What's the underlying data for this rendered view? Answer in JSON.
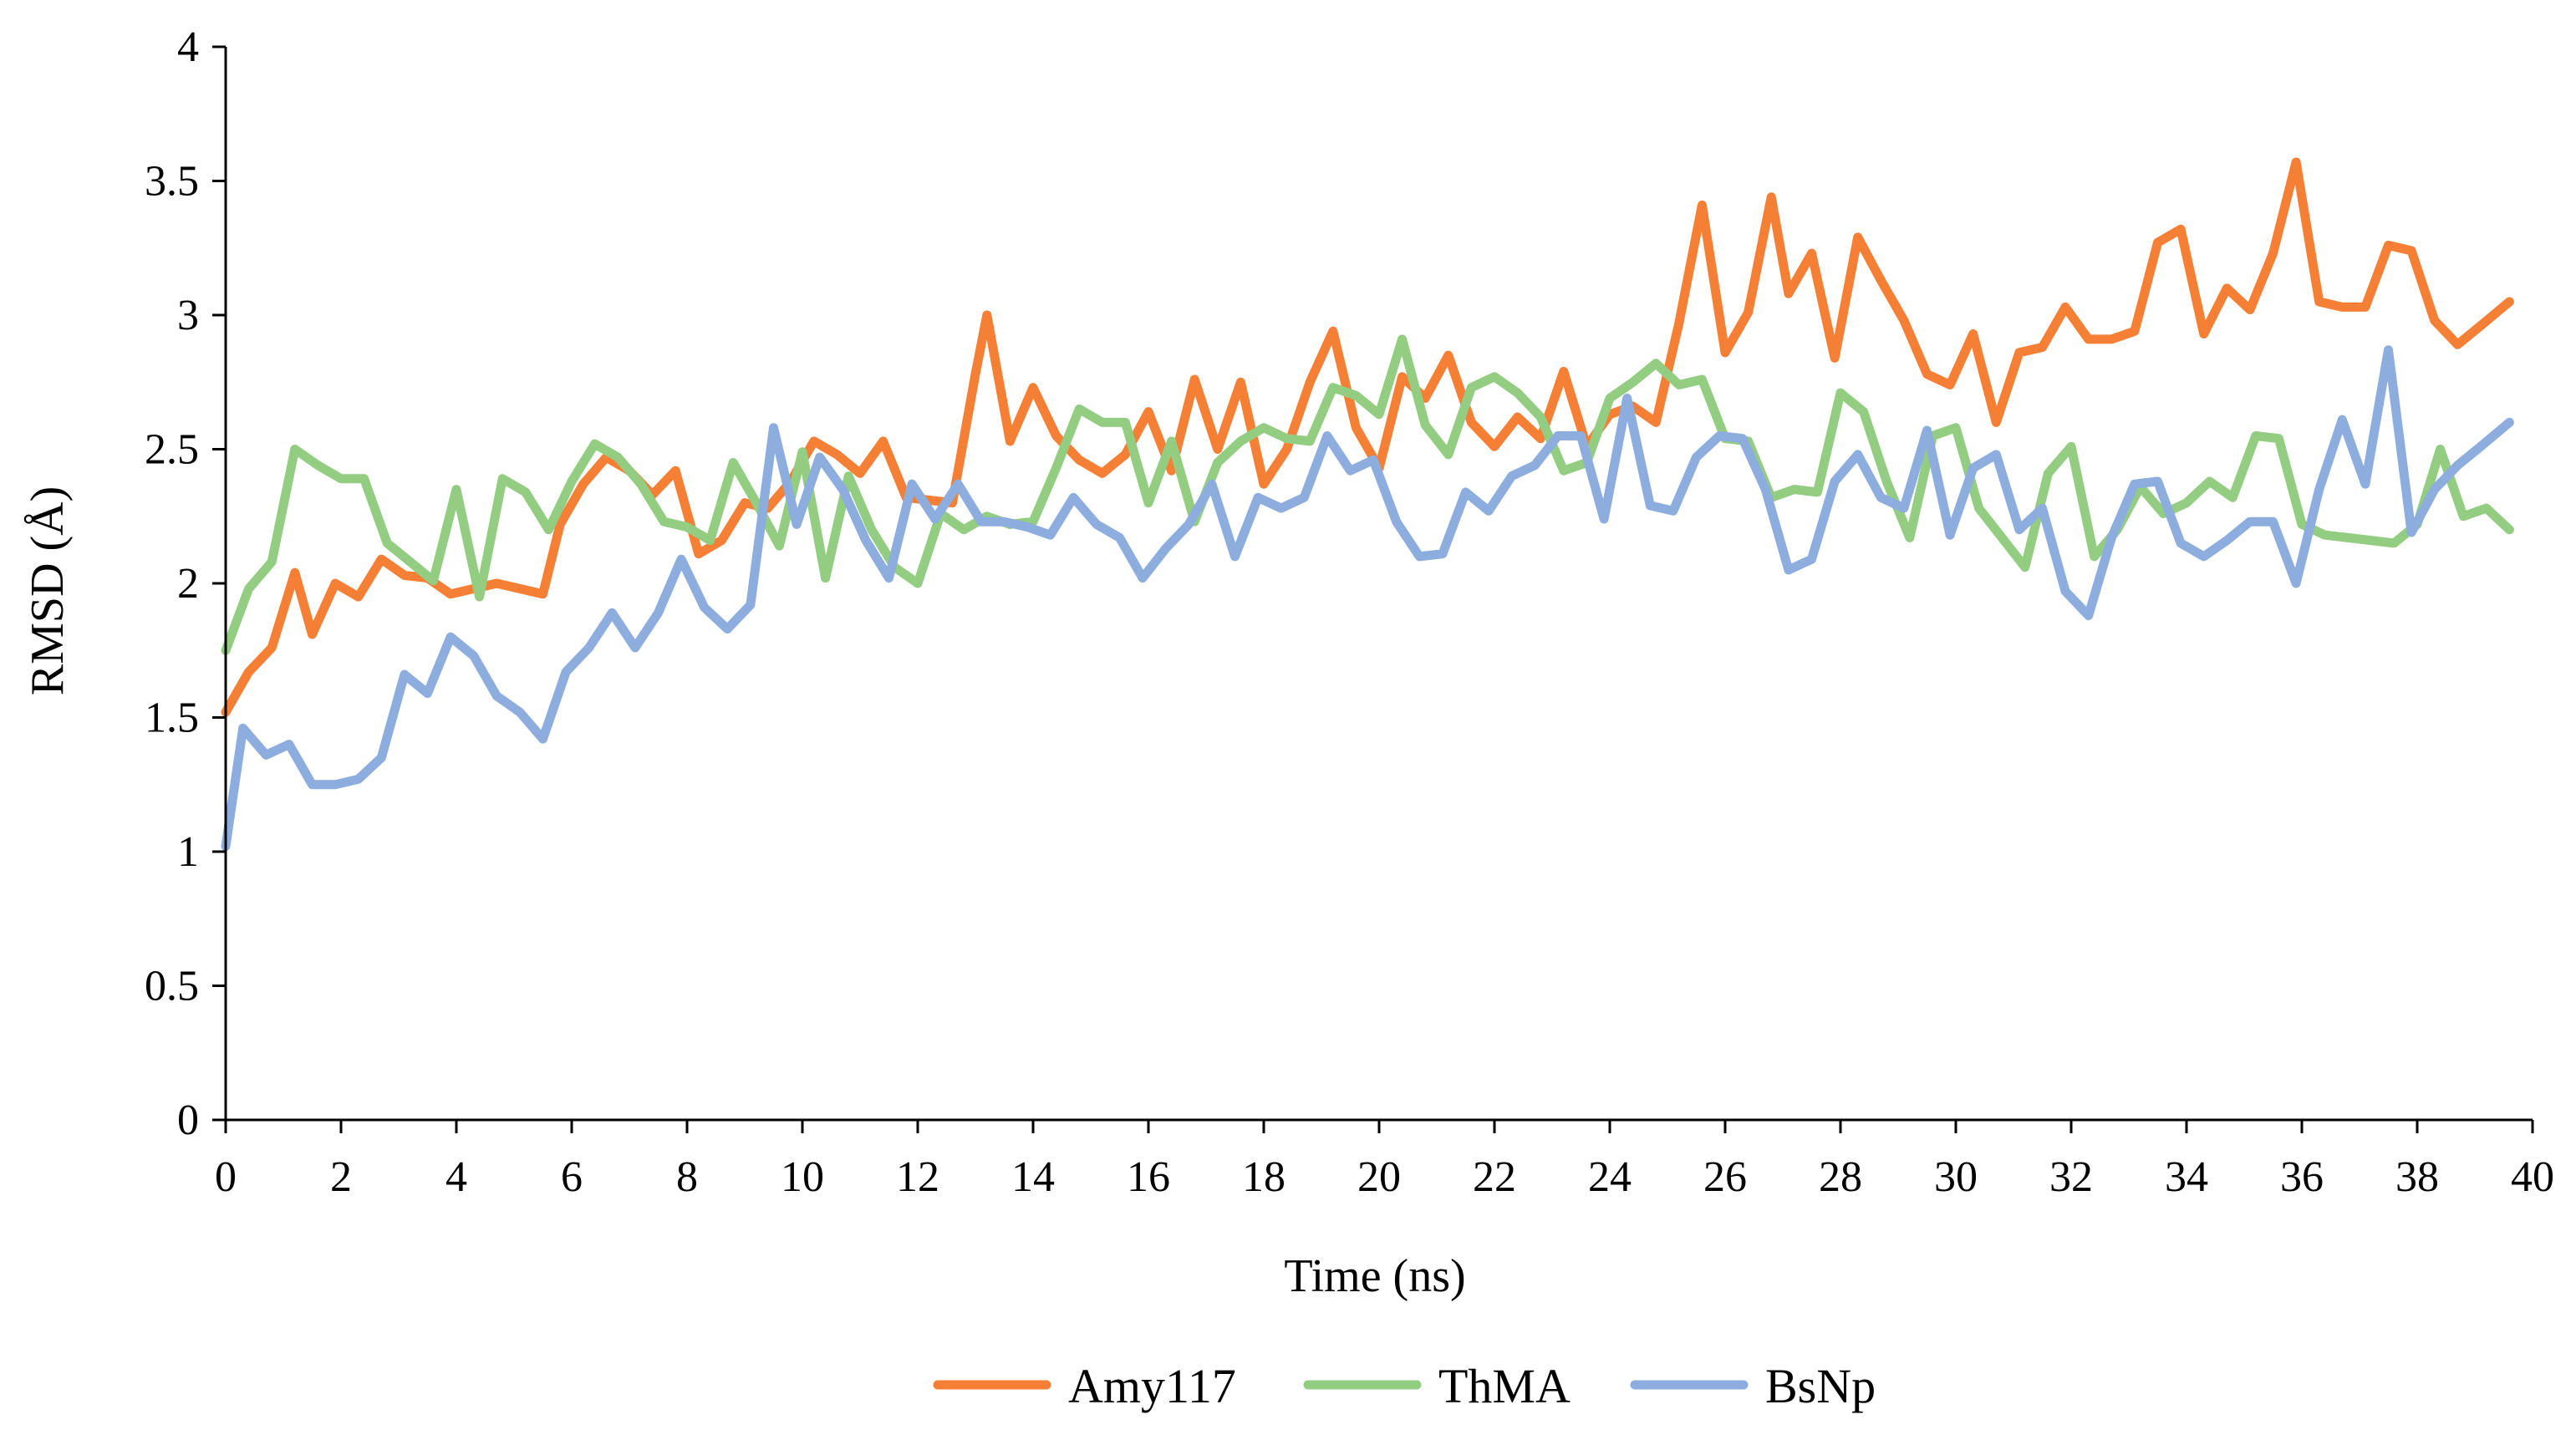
{
  "chart_data": {
    "type": "line",
    "title": "",
    "xlabel": "Time (ns)",
    "ylabel": "RMSD (Å)",
    "xlim": [
      0,
      40
    ],
    "ylim": [
      0,
      4
    ],
    "xticks": [
      0,
      2,
      4,
      6,
      8,
      10,
      12,
      14,
      16,
      18,
      20,
      22,
      24,
      26,
      28,
      30,
      32,
      34,
      36,
      38,
      40
    ],
    "yticks": [
      0,
      0.5,
      1,
      1.5,
      2,
      2.5,
      3,
      3.5,
      4
    ],
    "grid": false,
    "legend_position": "bottom-center",
    "series": [
      {
        "name": "Amy117",
        "color": "#f47f35",
        "x": [
          0,
          0.4,
          0.8,
          1.2,
          1.5,
          1.9,
          2.3,
          2.7,
          3.1,
          3.5,
          3.9,
          4.3,
          4.7,
          5.1,
          5.5,
          5.8,
          6.2,
          6.6,
          7.0,
          7.4,
          7.8,
          8.2,
          8.6,
          9.0,
          9.4,
          9.8,
          10.2,
          10.6,
          11.0,
          11.4,
          11.8,
          12.2,
          12.6,
          13.0,
          13.2,
          13.6,
          14.0,
          14.4,
          14.8,
          15.2,
          15.6,
          16.0,
          16.4,
          16.8,
          17.2,
          17.6,
          18.0,
          18.4,
          18.8,
          19.2,
          19.6,
          20.0,
          20.4,
          20.8,
          21.2,
          21.6,
          22.0,
          22.4,
          22.8,
          23.2,
          23.6,
          24.0,
          24.4,
          24.8,
          25.2,
          25.6,
          26.0,
          26.4,
          26.8,
          27.1,
          27.5,
          27.9,
          28.3,
          28.7,
          29.1,
          29.5,
          29.9,
          30.3,
          30.7,
          31.1,
          31.5,
          31.9,
          32.3,
          32.7,
          33.1,
          33.5,
          33.9,
          34.3,
          34.7,
          35.1,
          35.5,
          35.9,
          36.3,
          36.7,
          37.1,
          37.5,
          37.9,
          38.3,
          38.7,
          39.1,
          39.6
        ],
        "y": [
          1.52,
          1.67,
          1.76,
          2.04,
          1.81,
          2.0,
          1.95,
          2.09,
          2.03,
          2.02,
          1.96,
          1.98,
          2.0,
          1.98,
          1.96,
          2.22,
          2.37,
          2.47,
          2.42,
          2.33,
          2.42,
          2.11,
          2.16,
          2.3,
          2.28,
          2.38,
          2.53,
          2.48,
          2.41,
          2.53,
          2.32,
          2.31,
          2.3,
          2.78,
          3.0,
          2.53,
          2.73,
          2.55,
          2.46,
          2.41,
          2.48,
          2.64,
          2.42,
          2.76,
          2.5,
          2.75,
          2.37,
          2.5,
          2.75,
          2.94,
          2.58,
          2.43,
          2.77,
          2.69,
          2.85,
          2.6,
          2.51,
          2.62,
          2.54,
          2.79,
          2.51,
          2.63,
          2.66,
          2.6,
          2.97,
          3.41,
          2.86,
          3.01,
          3.44,
          3.08,
          3.23,
          2.84,
          3.29,
          3.13,
          2.98,
          2.78,
          2.74,
          2.93,
          2.6,
          2.86,
          2.88,
          3.03,
          2.91,
          2.91,
          2.94,
          3.27,
          3.32,
          2.93,
          3.1,
          3.02,
          3.23,
          3.57,
          3.05,
          3.03,
          3.03,
          3.26,
          3.24,
          2.98,
          2.89,
          2.96,
          3.05
        ]
      },
      {
        "name": "ThMA",
        "color": "#92cd81",
        "x": [
          0,
          0.4,
          0.8,
          1.2,
          1.6,
          2.0,
          2.4,
          2.8,
          3.2,
          3.6,
          4.0,
          4.4,
          4.8,
          5.2,
          5.6,
          6.0,
          6.4,
          6.8,
          7.2,
          7.6,
          8.0,
          8.4,
          8.8,
          9.2,
          9.6,
          10.0,
          10.4,
          10.8,
          11.2,
          11.6,
          12.0,
          12.4,
          12.8,
          13.2,
          13.6,
          14.0,
          14.4,
          14.8,
          15.2,
          15.6,
          16.0,
          16.4,
          16.8,
          17.2,
          17.6,
          18.0,
          18.4,
          18.8,
          19.2,
          19.6,
          20.0,
          20.4,
          20.8,
          21.2,
          21.6,
          22.0,
          22.4,
          22.8,
          23.2,
          23.6,
          24.0,
          24.4,
          24.8,
          25.2,
          25.6,
          26.0,
          26.4,
          26.8,
          27.2,
          27.6,
          28.0,
          28.4,
          28.8,
          29.2,
          29.6,
          30.0,
          30.4,
          30.8,
          31.2,
          31.6,
          32.0,
          32.4,
          32.8,
          33.2,
          33.6,
          34.0,
          34.4,
          34.8,
          35.2,
          35.6,
          36.0,
          36.4,
          36.8,
          37.2,
          37.6,
          38.0,
          38.4,
          38.8,
          39.2,
          39.6
        ],
        "y": [
          1.75,
          1.98,
          2.08,
          2.5,
          2.44,
          2.39,
          2.39,
          2.15,
          2.08,
          2.01,
          2.35,
          1.95,
          2.39,
          2.34,
          2.2,
          2.38,
          2.52,
          2.47,
          2.37,
          2.23,
          2.21,
          2.16,
          2.45,
          2.3,
          2.14,
          2.49,
          2.02,
          2.4,
          2.2,
          2.06,
          2.0,
          2.26,
          2.2,
          2.25,
          2.22,
          2.23,
          2.43,
          2.65,
          2.6,
          2.6,
          2.3,
          2.53,
          2.23,
          2.45,
          2.53,
          2.58,
          2.54,
          2.53,
          2.73,
          2.7,
          2.63,
          2.91,
          2.59,
          2.48,
          2.73,
          2.77,
          2.71,
          2.62,
          2.42,
          2.45,
          2.69,
          2.75,
          2.82,
          2.74,
          2.76,
          2.54,
          2.53,
          2.32,
          2.35,
          2.34,
          2.71,
          2.64,
          2.38,
          2.17,
          2.55,
          2.58,
          2.28,
          2.17,
          2.06,
          2.41,
          2.51,
          2.1,
          2.2,
          2.36,
          2.26,
          2.3,
          2.38,
          2.32,
          2.55,
          2.54,
          2.22,
          2.18,
          2.17,
          2.16,
          2.15,
          2.22,
          2.5,
          2.25,
          2.28,
          2.2
        ]
      },
      {
        "name": "BsNp",
        "color": "#8daddf",
        "x": [
          0,
          0.3,
          0.7,
          1.1,
          1.5,
          1.9,
          2.3,
          2.7,
          3.1,
          3.5,
          3.9,
          4.3,
          4.7,
          5.1,
          5.5,
          5.9,
          6.3,
          6.7,
          7.1,
          7.5,
          7.9,
          8.3,
          8.7,
          9.1,
          9.5,
          9.9,
          10.3,
          10.7,
          11.1,
          11.5,
          11.9,
          12.3,
          12.7,
          13.1,
          13.5,
          13.9,
          14.3,
          14.7,
          15.1,
          15.5,
          15.9,
          16.3,
          16.7,
          17.1,
          17.5,
          17.9,
          18.3,
          18.7,
          19.1,
          19.5,
          19.9,
          20.3,
          20.7,
          21.1,
          21.5,
          21.9,
          22.3,
          22.7,
          23.1,
          23.5,
          23.9,
          24.3,
          24.7,
          25.1,
          25.5,
          25.9,
          26.3,
          26.7,
          27.1,
          27.5,
          27.9,
          28.3,
          28.7,
          29.1,
          29.5,
          29.9,
          30.3,
          30.7,
          31.1,
          31.5,
          31.9,
          32.3,
          32.7,
          33.1,
          33.5,
          33.9,
          34.3,
          34.7,
          35.1,
          35.5,
          35.9,
          36.3,
          36.7,
          37.1,
          37.5,
          37.9,
          38.3,
          38.7,
          39.1,
          39.6
        ],
        "y": [
          1.02,
          1.46,
          1.36,
          1.4,
          1.25,
          1.25,
          1.27,
          1.35,
          1.66,
          1.59,
          1.8,
          1.73,
          1.58,
          1.52,
          1.42,
          1.67,
          1.76,
          1.89,
          1.76,
          1.89,
          2.09,
          1.91,
          1.83,
          1.92,
          2.58,
          2.22,
          2.47,
          2.35,
          2.16,
          2.02,
          2.37,
          2.24,
          2.37,
          2.23,
          2.23,
          2.21,
          2.18,
          2.32,
          2.22,
          2.17,
          2.02,
          2.13,
          2.22,
          2.37,
          2.1,
          2.32,
          2.28,
          2.32,
          2.55,
          2.42,
          2.46,
          2.23,
          2.1,
          2.11,
          2.34,
          2.27,
          2.4,
          2.44,
          2.55,
          2.55,
          2.24,
          2.69,
          2.29,
          2.27,
          2.47,
          2.55,
          2.54,
          2.35,
          2.05,
          2.09,
          2.38,
          2.48,
          2.32,
          2.28,
          2.57,
          2.18,
          2.43,
          2.48,
          2.2,
          2.28,
          1.97,
          1.88,
          2.17,
          2.37,
          2.38,
          2.15,
          2.1,
          2.16,
          2.23,
          2.23,
          2.0,
          2.35,
          2.61,
          2.37,
          2.87,
          2.19,
          2.35,
          2.44,
          2.51,
          2.6
        ]
      }
    ]
  }
}
